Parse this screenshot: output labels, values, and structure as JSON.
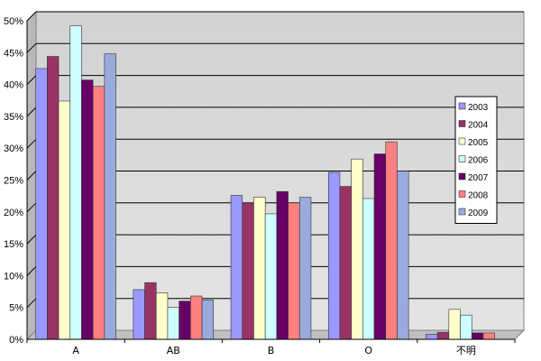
{
  "chart_data": {
    "type": "bar",
    "title": "",
    "xlabel": "",
    "ylabel": "",
    "categories": [
      "A",
      "AB",
      "B",
      "O",
      "不明"
    ],
    "ylim": [
      0,
      50
    ],
    "yticks": [
      "0%",
      "5%",
      "10%",
      "15%",
      "20%",
      "25%",
      "30%",
      "35%",
      "40%",
      "45%",
      "50%"
    ],
    "grid": true,
    "legend_position": "right",
    "series": [
      {
        "name": "2003",
        "color": "#9999ff",
        "values": [
          42.5,
          7.8,
          22.6,
          26.2,
          0.8
        ]
      },
      {
        "name": "2004",
        "color": "#993366",
        "values": [
          44.4,
          8.9,
          21.4,
          24.0,
          1.1
        ]
      },
      {
        "name": "2005",
        "color": "#ffffcc",
        "values": [
          37.4,
          7.3,
          22.3,
          28.3,
          4.7
        ]
      },
      {
        "name": "2006",
        "color": "#ccffff",
        "values": [
          49.2,
          5.0,
          19.7,
          22.1,
          3.8
        ]
      },
      {
        "name": "2007",
        "color": "#660066",
        "values": [
          40.7,
          6.0,
          23.2,
          29.1,
          1.0
        ]
      },
      {
        "name": "2008",
        "color": "#ff8080",
        "values": [
          39.7,
          6.8,
          21.4,
          31.0,
          1.0
        ]
      },
      {
        "name": "2009",
        "color": "#99aadd",
        "values": [
          44.8,
          6.2,
          22.3,
          26.4,
          0.0
        ]
      }
    ]
  }
}
